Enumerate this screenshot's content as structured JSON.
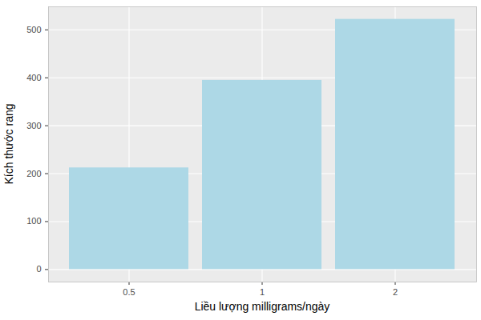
{
  "chart_data": {
    "type": "bar",
    "x_label": "Liều lượng milligrams/ngày",
    "y_label": "Kích thước rang",
    "categories": [
      "0.5",
      "1",
      "2"
    ],
    "values": [
      212.1,
      394.7,
      522.0
    ],
    "color": "#ADD8E6",
    "ylim": [
      -26.1,
      548.1
    ],
    "yticks": [
      0,
      100,
      200,
      300,
      400,
      500
    ],
    "grid": true
  }
}
